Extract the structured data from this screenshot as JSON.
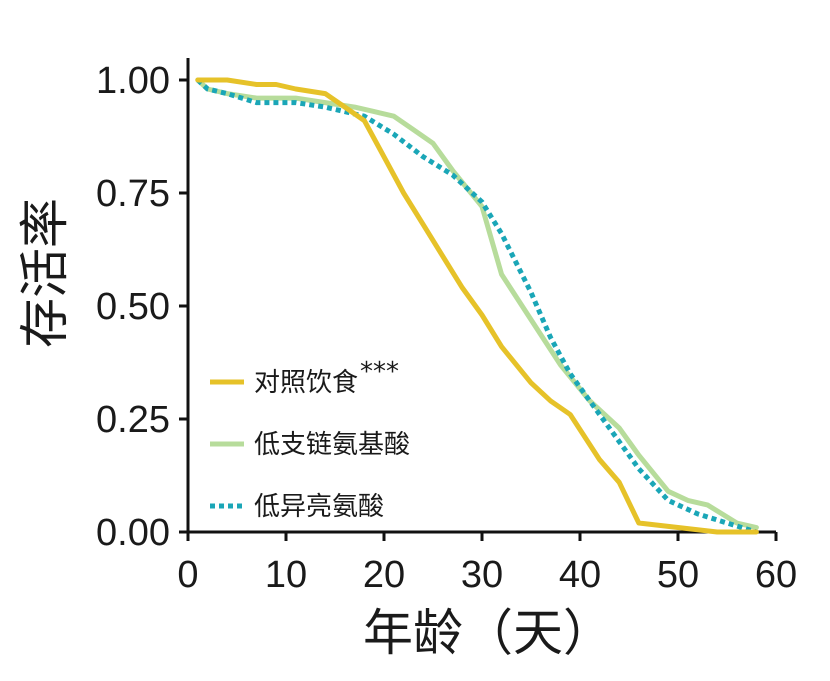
{
  "chart_data": {
    "type": "line",
    "xlabel": "年龄（天）",
    "ylabel": "存活率",
    "xlim": [
      0,
      60
    ],
    "ylim": [
      0,
      1
    ],
    "x_ticks": [
      "0",
      "10",
      "20",
      "30",
      "40",
      "50",
      "60"
    ],
    "y_ticks": [
      "0.00",
      "0.25",
      "0.50",
      "0.75",
      "1.00"
    ],
    "grid": false,
    "legend_position": "bottom-left",
    "series": [
      {
        "name": "对照饮食",
        "annotation": "***",
        "color": "#e6c229",
        "dash": "solid",
        "x": [
          1,
          4,
          7,
          9,
          11,
          14,
          16,
          18,
          20,
          22,
          24,
          26,
          28,
          30,
          32,
          35,
          37,
          39,
          42,
          44,
          46,
          50,
          54,
          58
        ],
        "y": [
          1.0,
          1.0,
          0.99,
          0.99,
          0.98,
          0.97,
          0.94,
          0.91,
          0.83,
          0.75,
          0.68,
          0.61,
          0.54,
          0.48,
          0.41,
          0.33,
          0.29,
          0.26,
          0.16,
          0.11,
          0.02,
          0.01,
          0.0,
          0.0
        ]
      },
      {
        "name": "低支链氨基酸",
        "color": "#b7dc9b",
        "dash": "solid",
        "x": [
          1,
          2,
          4,
          7,
          11,
          14,
          17,
          19,
          21,
          23,
          25,
          27,
          30,
          32,
          35,
          38,
          41,
          44,
          46,
          49,
          51,
          53,
          56,
          58
        ],
        "y": [
          1.0,
          0.98,
          0.97,
          0.96,
          0.96,
          0.95,
          0.94,
          0.93,
          0.92,
          0.89,
          0.86,
          0.8,
          0.72,
          0.57,
          0.47,
          0.37,
          0.29,
          0.23,
          0.17,
          0.09,
          0.07,
          0.06,
          0.02,
          0.01
        ]
      },
      {
        "name": "低异亮氨酸",
        "color": "#1aa6b7",
        "dash": "dotted",
        "x": [
          1,
          2,
          4,
          7,
          11,
          14,
          18,
          21,
          24,
          27,
          30,
          32,
          35,
          37,
          39,
          42,
          44,
          46,
          49,
          52,
          55,
          58
        ],
        "y": [
          1.0,
          0.98,
          0.97,
          0.95,
          0.95,
          0.94,
          0.92,
          0.88,
          0.83,
          0.79,
          0.73,
          0.66,
          0.53,
          0.43,
          0.35,
          0.26,
          0.2,
          0.14,
          0.07,
          0.04,
          0.02,
          0.0
        ]
      }
    ]
  }
}
